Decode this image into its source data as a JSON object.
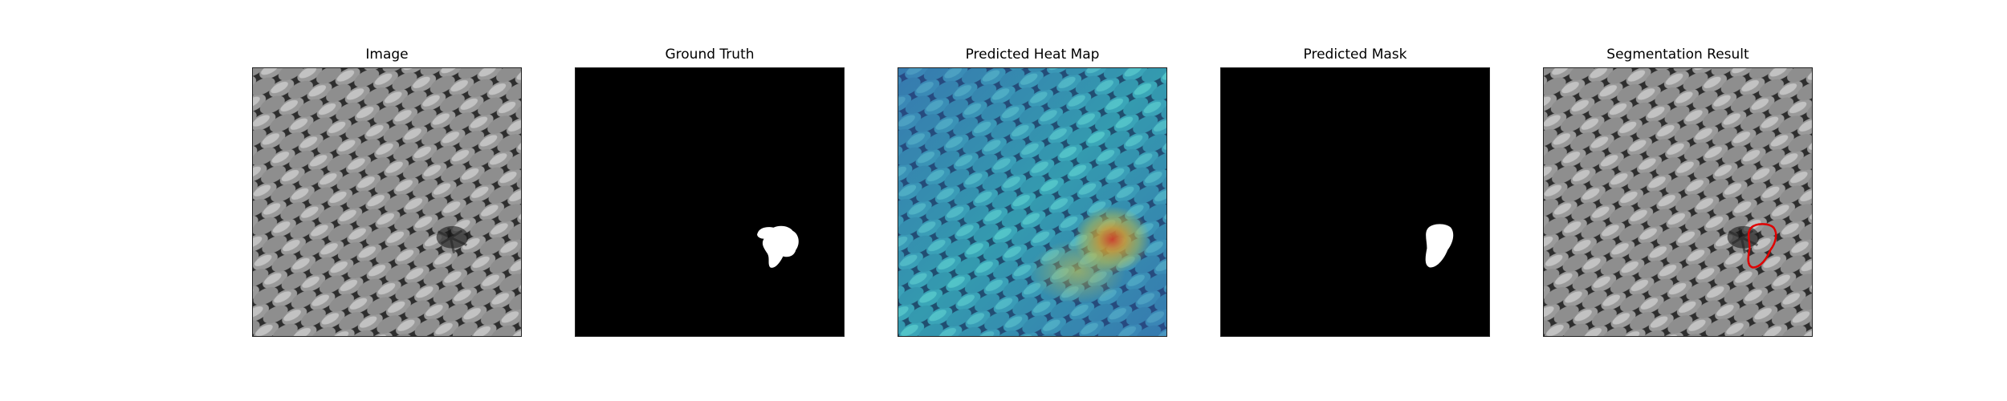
{
  "figure": {
    "panels": [
      {
        "id": "image",
        "title": "Image"
      },
      {
        "id": "ground-truth",
        "title": "Ground Truth"
      },
      {
        "id": "heat-map",
        "title": "Predicted Heat Map"
      },
      {
        "id": "mask",
        "title": "Predicted Mask"
      },
      {
        "id": "segmentation",
        "title": "Segmentation Result"
      }
    ],
    "colors": {
      "background": "#ffffff",
      "mask_fill": "#ffffff",
      "mask_bg": "#000000",
      "contour": "#e00000",
      "texture_dark": "#2a2a2a",
      "texture_light": "#b4b4b4"
    }
  }
}
